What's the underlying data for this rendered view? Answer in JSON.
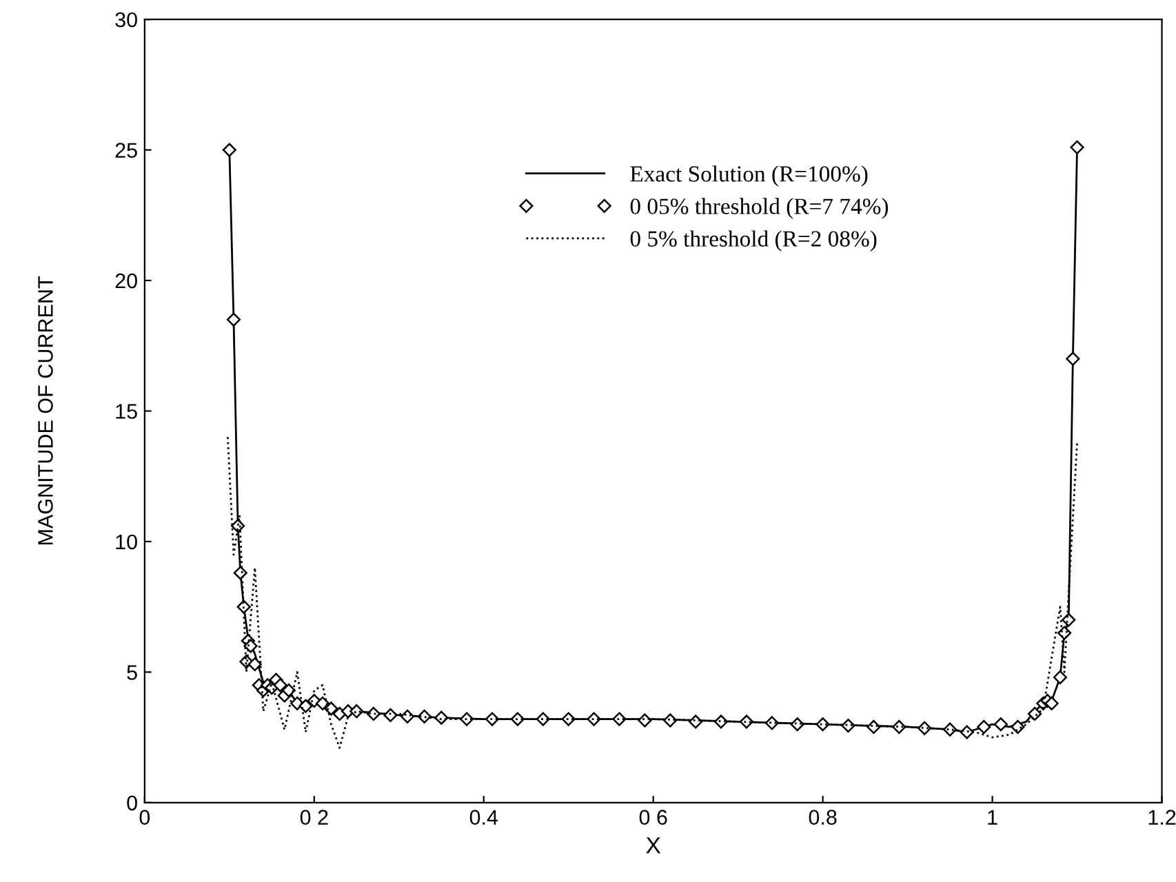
{
  "chart_data": {
    "type": "line",
    "xlabel": "X",
    "ylabel": "MAGNITUDE OF CURRENT",
    "xlim": [
      0,
      1.2
    ],
    "ylim": [
      0,
      30
    ],
    "xticks": [
      0,
      {
        "value": 0.2,
        "label": "0 2"
      },
      0.4,
      {
        "value": 0.6,
        "label": "0 6"
      },
      0.8,
      1,
      1.2
    ],
    "yticks": [
      0,
      5,
      10,
      15,
      20,
      25,
      30
    ],
    "grid": false,
    "legend": "top",
    "tick_labels": true,
    "series": [
      {
        "name": "Exact Solution (R=100%)",
        "color": "#000000",
        "line_style": "solid",
        "marker": "none",
        "x": [
          0.1,
          0.105,
          0.11,
          0.113,
          0.117,
          0.122,
          0.13,
          0.14,
          0.15,
          0.16,
          0.17,
          0.18,
          0.19,
          0.2,
          0.21,
          0.22,
          0.23,
          0.25,
          0.3,
          0.35,
          0.4,
          0.5,
          0.6,
          0.7,
          0.8,
          0.9,
          0.95,
          0.97,
          0.98,
          1.0,
          1.02,
          1.04,
          1.05,
          1.06,
          1.07,
          1.08,
          1.085,
          1.09,
          1.095,
          1.1
        ],
        "values": [
          25,
          18.5,
          10.6,
          8.8,
          7.5,
          6.3,
          5.7,
          4.6,
          4.4,
          4.6,
          4.3,
          3.8,
          3.7,
          3.9,
          3.8,
          3.6,
          3.4,
          3.5,
          3.35,
          3.25,
          3.2,
          3.2,
          3.2,
          3.1,
          3.0,
          2.9,
          2.8,
          2.7,
          2.8,
          3.0,
          2.9,
          3.1,
          3.5,
          3.8,
          3.9,
          4.8,
          6.5,
          7.0,
          17.0,
          25.1
        ]
      },
      {
        "name": "0 05% threshold (R=7 74%)",
        "type": "scatter",
        "color": "#000000",
        "marker": "diamond",
        "x": [
          0.1,
          0.105,
          0.11,
          0.113,
          0.117,
          0.12,
          0.122,
          0.125,
          0.13,
          0.135,
          0.14,
          0.145,
          0.15,
          0.155,
          0.16,
          0.165,
          0.17,
          0.18,
          0.19,
          0.2,
          0.21,
          0.22,
          0.23,
          0.24,
          0.25,
          0.27,
          0.29,
          0.31,
          0.33,
          0.35,
          0.38,
          0.41,
          0.44,
          0.47,
          0.5,
          0.53,
          0.56,
          0.59,
          0.62,
          0.65,
          0.68,
          0.71,
          0.74,
          0.77,
          0.8,
          0.83,
          0.86,
          0.89,
          0.92,
          0.95,
          0.97,
          0.99,
          1.01,
          1.03,
          1.05,
          1.06,
          1.065,
          1.07,
          1.08,
          1.085,
          1.09,
          1.095,
          1.1
        ],
        "values": [
          25,
          18.5,
          10.6,
          8.8,
          7.5,
          5.4,
          6.2,
          6.0,
          5.3,
          4.5,
          4.3,
          4.5,
          4.4,
          4.7,
          4.5,
          4.1,
          4.3,
          3.8,
          3.7,
          3.9,
          3.8,
          3.6,
          3.4,
          3.5,
          3.5,
          3.4,
          3.35,
          3.3,
          3.3,
          3.25,
          3.2,
          3.2,
          3.2,
          3.2,
          3.2,
          3.2,
          3.2,
          3.15,
          3.15,
          3.1,
          3.1,
          3.1,
          3.05,
          3.0,
          3.0,
          2.95,
          2.9,
          2.9,
          2.85,
          2.8,
          2.7,
          2.9,
          3.0,
          2.9,
          3.4,
          3.8,
          3.9,
          3.8,
          4.8,
          6.5,
          7.0,
          17.0,
          25.1
        ]
      },
      {
        "name": "0 5% threshold (R=2 08%)",
        "color": "#000000",
        "line_style": "dotted",
        "marker": "none",
        "x": [
          0.098,
          0.105,
          0.112,
          0.12,
          0.13,
          0.14,
          0.15,
          0.165,
          0.18,
          0.19,
          0.2,
          0.21,
          0.22,
          0.23,
          0.24,
          0.25,
          0.27,
          0.3,
          0.35,
          0.4,
          0.5,
          0.6,
          0.7,
          0.8,
          0.9,
          0.95,
          0.98,
          1.0,
          1.02,
          1.04,
          1.06,
          1.08,
          1.085,
          1.09,
          1.1
        ],
        "values": [
          14,
          9.5,
          11,
          5,
          9,
          3.5,
          4.6,
          2.8,
          5,
          2.7,
          4.3,
          4.5,
          3,
          2.1,
          3.3,
          3.5,
          3.4,
          3.4,
          3.2,
          3.2,
          3.2,
          3.2,
          3.1,
          3.0,
          2.9,
          2.8,
          2.7,
          2.5,
          2.6,
          3.0,
          3.6,
          7.5,
          5,
          8,
          13.8
        ]
      }
    ]
  }
}
